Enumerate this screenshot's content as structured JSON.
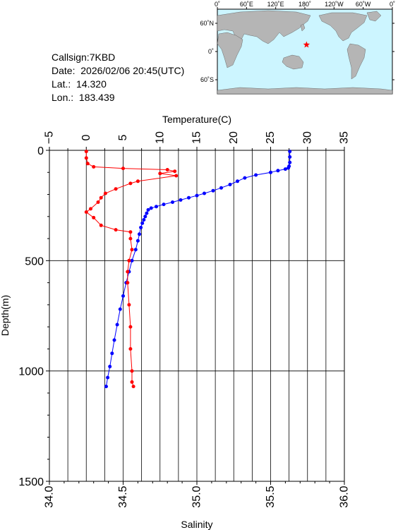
{
  "station": {
    "callsign": "Callsign:7KBD",
    "date": "Date:  2026/02/06 20:45(UTC)",
    "lat_label": "Lat.:",
    "lat_value": "14.320",
    "lon_label": "Lon.:",
    "lon_value": "183.439"
  },
  "map": {
    "top_ticks": [
      "0˚",
      "60˚E",
      "120˚E",
      "180˚",
      "120˚W",
      "60˚W",
      "0˚"
    ],
    "lat_ticks": [
      "60˚N",
      "0˚",
      "60˚S"
    ],
    "ocean_color": "#ccf5ff",
    "land_color": "#b5b5b5",
    "marker": {
      "lon": 183.439,
      "lat": 14.32,
      "color": "#ff0000"
    }
  },
  "chart_data": {
    "type": "line",
    "temperature_axis": {
      "label": "Temperature(C)",
      "ticks": [
        "−5",
        "0",
        "5",
        "10",
        "15",
        "20",
        "25",
        "30",
        "35"
      ],
      "range": [
        -5,
        35
      ]
    },
    "salinity_axis": {
      "label": "Salinity",
      "ticks": [
        "34.0",
        "34.5",
        "35.0",
        "35.5",
        "36.0"
      ],
      "range": [
        34.0,
        36.0
      ]
    },
    "depth_axis": {
      "label": "Depth(m)",
      "ticks": [
        "0",
        "500",
        "1000",
        "1500"
      ],
      "range": [
        0,
        1500
      ],
      "inverted": true
    },
    "grid": true,
    "series": [
      {
        "axis": "temperature",
        "color": "#0000ff",
        "points": [
          [
            27.6,
            5
          ],
          [
            27.6,
            30
          ],
          [
            27.6,
            55
          ],
          [
            27.5,
            72
          ],
          [
            27.4,
            80
          ],
          [
            27.0,
            85
          ],
          [
            26.0,
            92
          ],
          [
            25.0,
            100
          ],
          [
            23.0,
            112
          ],
          [
            21.5,
            125
          ],
          [
            20.5,
            140
          ],
          [
            19.5,
            155
          ],
          [
            18.3,
            170
          ],
          [
            17.2,
            183
          ],
          [
            16.0,
            195
          ],
          [
            15.0,
            205
          ],
          [
            13.9,
            215
          ],
          [
            12.8,
            225
          ],
          [
            11.7,
            235
          ],
          [
            10.5,
            245
          ],
          [
            9.5,
            255
          ],
          [
            8.8,
            262
          ],
          [
            8.4,
            270
          ],
          [
            8.2,
            285
          ],
          [
            8.0,
            300
          ],
          [
            7.8,
            315
          ],
          [
            7.6,
            330
          ],
          [
            7.4,
            350
          ],
          [
            7.2,
            380
          ],
          [
            7.0,
            410
          ],
          [
            6.7,
            450
          ],
          [
            6.2,
            500
          ],
          [
            5.8,
            550
          ],
          [
            5.4,
            600
          ],
          [
            5.0,
            660
          ],
          [
            4.6,
            720
          ],
          [
            4.2,
            790
          ],
          [
            3.8,
            860
          ],
          [
            3.5,
            920
          ],
          [
            3.2,
            980
          ],
          [
            2.9,
            1030
          ],
          [
            2.7,
            1070
          ]
        ]
      },
      {
        "axis": "salinity",
        "color": "#ff0000",
        "points": [
          [
            34.25,
            5
          ],
          [
            34.25,
            35
          ],
          [
            34.26,
            60
          ],
          [
            34.3,
            75
          ],
          [
            34.5,
            82
          ],
          [
            34.8,
            88
          ],
          [
            34.85,
            95
          ],
          [
            34.75,
            105
          ],
          [
            34.86,
            115
          ],
          [
            34.6,
            140
          ],
          [
            34.55,
            150
          ],
          [
            34.45,
            175
          ],
          [
            34.38,
            195
          ],
          [
            34.35,
            215
          ],
          [
            34.33,
            235
          ],
          [
            34.28,
            265
          ],
          [
            34.25,
            280
          ],
          [
            34.3,
            305
          ],
          [
            34.35,
            340
          ],
          [
            34.45,
            360
          ],
          [
            34.55,
            370
          ],
          [
            34.55,
            400
          ],
          [
            34.56,
            450
          ],
          [
            34.54,
            500
          ],
          [
            34.53,
            550
          ],
          [
            34.53,
            600
          ],
          [
            34.54,
            700
          ],
          [
            34.55,
            800
          ],
          [
            34.55,
            900
          ],
          [
            34.56,
            1000
          ],
          [
            34.56,
            1050
          ],
          [
            34.57,
            1070
          ]
        ]
      }
    ]
  }
}
